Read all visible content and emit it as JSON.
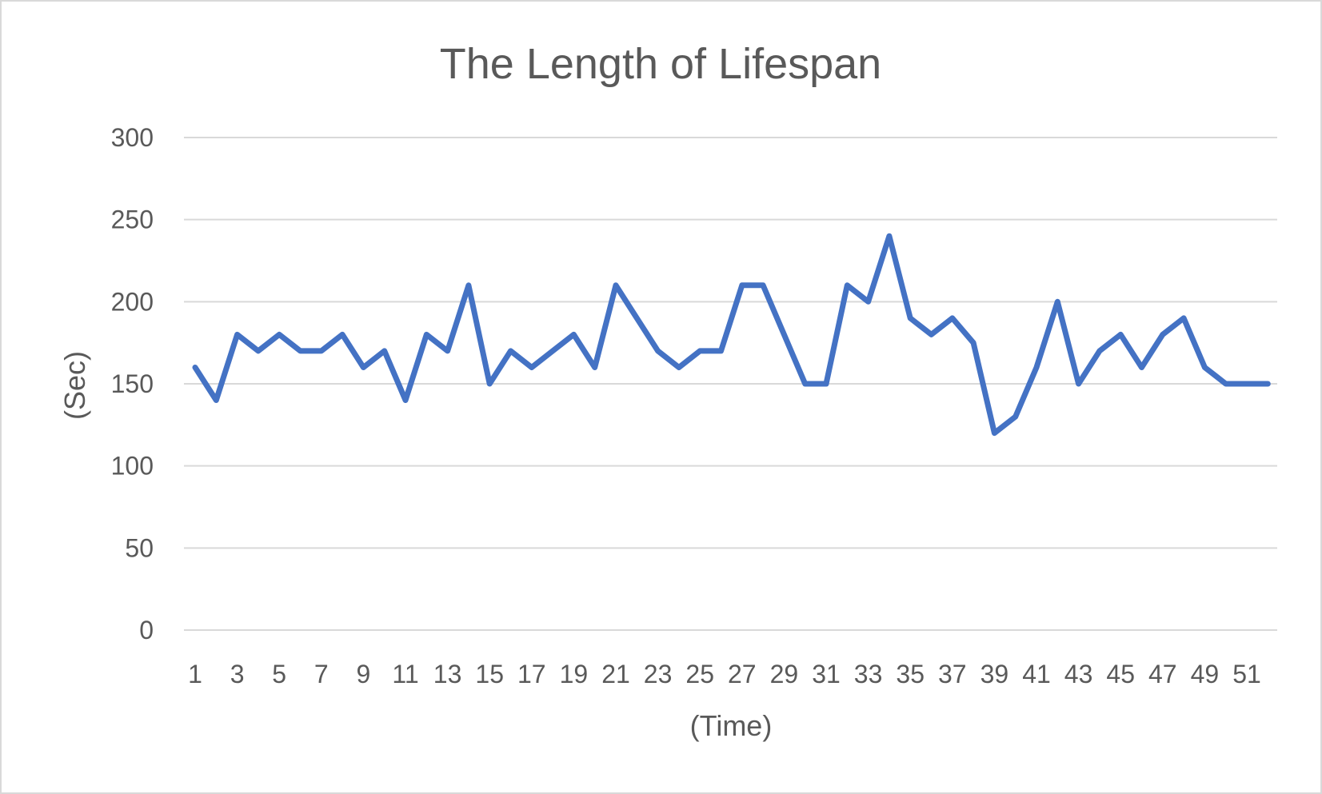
{
  "colors": {
    "series": "#4472c4",
    "grid": "#d9d9d9",
    "text": "#595959",
    "border": "#d9d9d9"
  },
  "chart_data": {
    "type": "line",
    "title": "The Length of Lifespan",
    "xlabel": "(Time)",
    "ylabel": "(Sec)",
    "ylim": [
      0,
      300
    ],
    "yticks": [
      0,
      50,
      100,
      150,
      200,
      250,
      300
    ],
    "grid": true,
    "legend": "none",
    "x": [
      1,
      2,
      3,
      4,
      5,
      6,
      7,
      8,
      9,
      10,
      11,
      12,
      13,
      14,
      15,
      16,
      17,
      18,
      19,
      20,
      21,
      22,
      23,
      24,
      25,
      26,
      27,
      28,
      29,
      30,
      31,
      32,
      33,
      34,
      35,
      36,
      37,
      38,
      39,
      40,
      41,
      42,
      43,
      44,
      45,
      46,
      47,
      48,
      49,
      50,
      51,
      52
    ],
    "xtick_labels": [
      "1",
      "3",
      "5",
      "7",
      "9",
      "11",
      "13",
      "15",
      "17",
      "19",
      "21",
      "23",
      "25",
      "27",
      "29",
      "31",
      "33",
      "35",
      "37",
      "39",
      "41",
      "43",
      "45",
      "47",
      "49",
      "51"
    ],
    "series": [
      {
        "values": [
          160,
          140,
          180,
          170,
          180,
          170,
          170,
          180,
          160,
          170,
          140,
          180,
          170,
          210,
          150,
          170,
          160,
          170,
          180,
          160,
          210,
          190,
          170,
          160,
          170,
          170,
          210,
          210,
          180,
          150,
          150,
          210,
          200,
          240,
          190,
          180,
          190,
          175,
          120,
          130,
          160,
          200,
          150,
          170,
          180,
          160,
          180,
          190,
          160,
          150,
          150,
          150
        ]
      }
    ]
  }
}
